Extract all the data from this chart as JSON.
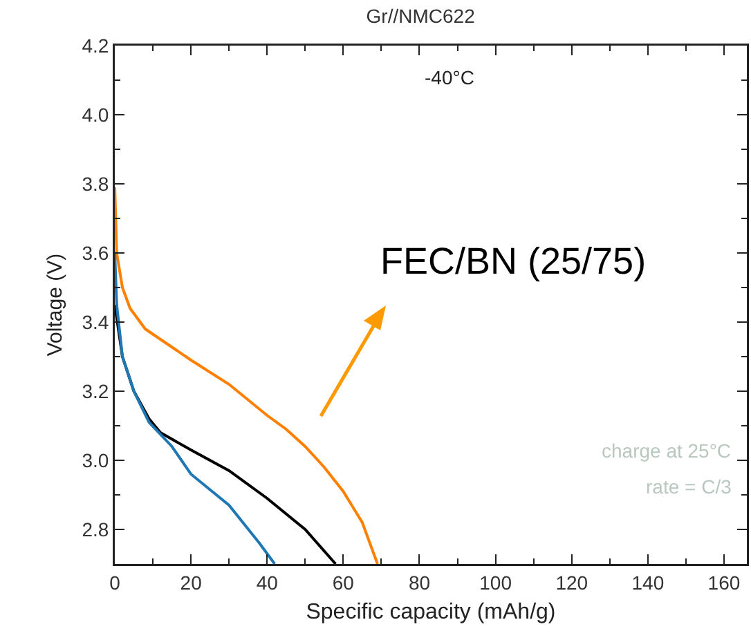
{
  "chart_data": {
    "type": "line",
    "title": "Gr//NMC622",
    "xlabel": "Specific capacity (mAh/g)",
    "ylabel": "Voltage (V)",
    "annotations": [
      "-40°C",
      "FEC/BN (25/75)",
      "charge at 25°C",
      "rate = C/3"
    ],
    "series": [
      {
        "color": "#ff8000",
        "x": [
          0,
          0.5,
          2,
          4,
          8,
          12,
          20,
          30,
          40,
          45,
          50,
          55,
          60,
          65,
          69
        ],
        "values": [
          3.79,
          3.6,
          3.5,
          3.44,
          3.38,
          3.35,
          3.29,
          3.22,
          3.13,
          3.09,
          3.04,
          2.98,
          2.91,
          2.82,
          2.7
        ]
      },
      {
        "color": "#000000",
        "x": [
          0,
          2,
          5,
          9,
          12,
          20,
          30,
          40,
          50,
          58
        ],
        "values": [
          3.45,
          3.3,
          3.2,
          3.12,
          3.08,
          3.03,
          2.97,
          2.89,
          2.8,
          2.7
        ]
      },
      {
        "color": "#1f77b4",
        "x": [
          0,
          0.5,
          2,
          5,
          9,
          15,
          20,
          30,
          38,
          42
        ],
        "values": [
          3.6,
          3.45,
          3.3,
          3.2,
          3.11,
          3.04,
          2.96,
          2.87,
          2.76,
          2.7
        ]
      }
    ],
    "xlim": [
      0,
      166
    ],
    "xticks": [
      0,
      20,
      40,
      60,
      80,
      100,
      120,
      140,
      160
    ],
    "ylim": [
      2.7,
      4.2
    ],
    "yticks": [
      2.8,
      {
        "value": 3,
        "label": "3.0"
      },
      3.2,
      3.4,
      3.6,
      3.8,
      {
        "value": 4,
        "label": "4.0"
      },
      4.2
    ],
    "grid": false,
    "marker": "none",
    "line_style": "solid"
  }
}
